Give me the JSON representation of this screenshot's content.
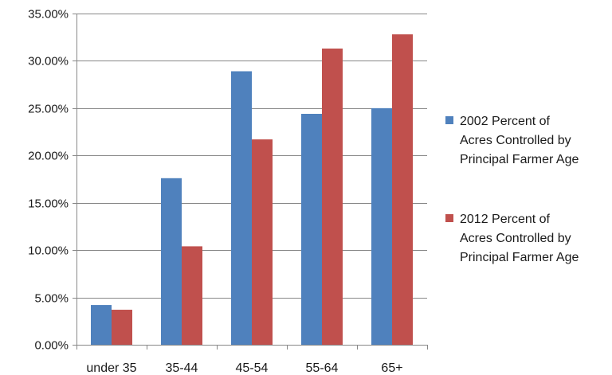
{
  "chart_data": {
    "type": "bar",
    "title": "",
    "xlabel": "",
    "ylabel": "",
    "categories": [
      "under 35",
      "35-44",
      "45-54",
      "55-64",
      "65+"
    ],
    "series": [
      {
        "name": "2002 Percent of Acres Controlled by Principal Farmer Age",
        "legend_lines": [
          "2002 Percent of",
          "Acres Controlled by",
          "Principal Farmer Age"
        ],
        "color": "#4F81BD",
        "values": [
          4.2,
          17.6,
          28.9,
          24.4,
          25.0
        ]
      },
      {
        "name": "2012 Percent of Acres Controlled by Principal Farmer Age",
        "legend_lines": [
          "2012 Percent of",
          "Acres Controlled by",
          "Principal Farmer Age"
        ],
        "color": "#C0504D",
        "values": [
          3.7,
          10.4,
          21.7,
          31.3,
          32.8
        ]
      }
    ],
    "ylim": [
      0,
      35
    ],
    "yticks": [
      0,
      5,
      10,
      15,
      20,
      25,
      30,
      35
    ],
    "ytick_labels": [
      "0.00%",
      "5.00%",
      "10.00%",
      "15.00%",
      "20.00%",
      "25.00%",
      "30.00%",
      "35.00%"
    ],
    "grid": true,
    "legend_position": "right"
  }
}
